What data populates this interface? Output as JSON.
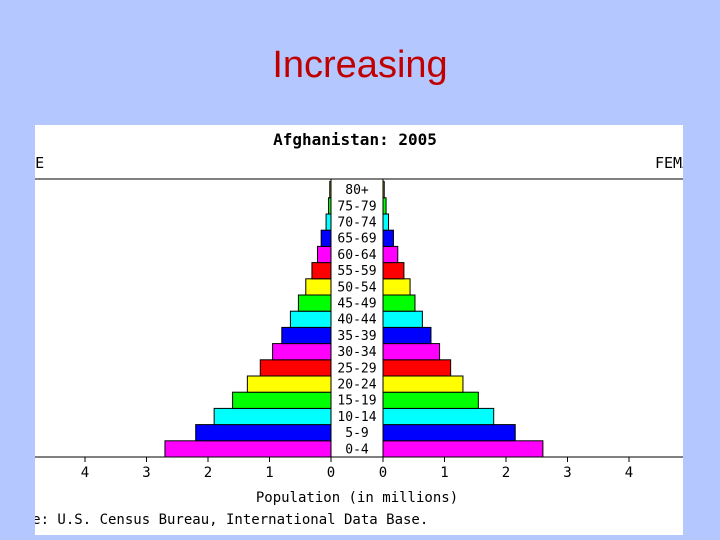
{
  "slide": {
    "title": "Increasing"
  },
  "chart_data": {
    "type": "bar",
    "subtype": "population-pyramid",
    "title": "Afghanistan: 2005",
    "left_label": "MALE",
    "right_label": "FEMALE",
    "xlabel": "Population (in millions)",
    "source": "Source: U.S. Census Bureau, International Data Base.",
    "xlim": [
      0,
      5
    ],
    "ticks_left": [
      "4",
      "3",
      "2",
      "1",
      "0"
    ],
    "ticks_right": [
      "0",
      "1",
      "2",
      "3",
      "4"
    ],
    "categories": [
      "0-4",
      "5-9",
      "10-14",
      "15-19",
      "20-24",
      "25-29",
      "30-34",
      "35-39",
      "40-44",
      "45-49",
      "50-54",
      "55-59",
      "60-64",
      "65-69",
      "70-74",
      "75-79",
      "80+"
    ],
    "colors": [
      "#ff00ff",
      "#0000ff",
      "#00ffff",
      "#00ff00",
      "#ffff00",
      "#ff0000",
      "#ff00ff",
      "#0000ff",
      "#00ffff",
      "#00ff00",
      "#ffff00",
      "#ff0000",
      "#ff00ff",
      "#0000ff",
      "#00ffff",
      "#00ff00",
      "#ffff00"
    ],
    "series": [
      {
        "name": "Male",
        "values": [
          2.7,
          2.2,
          1.9,
          1.6,
          1.36,
          1.15,
          0.95,
          0.8,
          0.66,
          0.53,
          0.41,
          0.31,
          0.22,
          0.16,
          0.08,
          0.04,
          0.02
        ]
      },
      {
        "name": "Female",
        "values": [
          2.6,
          2.15,
          1.8,
          1.55,
          1.3,
          1.1,
          0.92,
          0.78,
          0.64,
          0.52,
          0.44,
          0.34,
          0.24,
          0.17,
          0.09,
          0.05,
          0.02
        ]
      }
    ]
  }
}
